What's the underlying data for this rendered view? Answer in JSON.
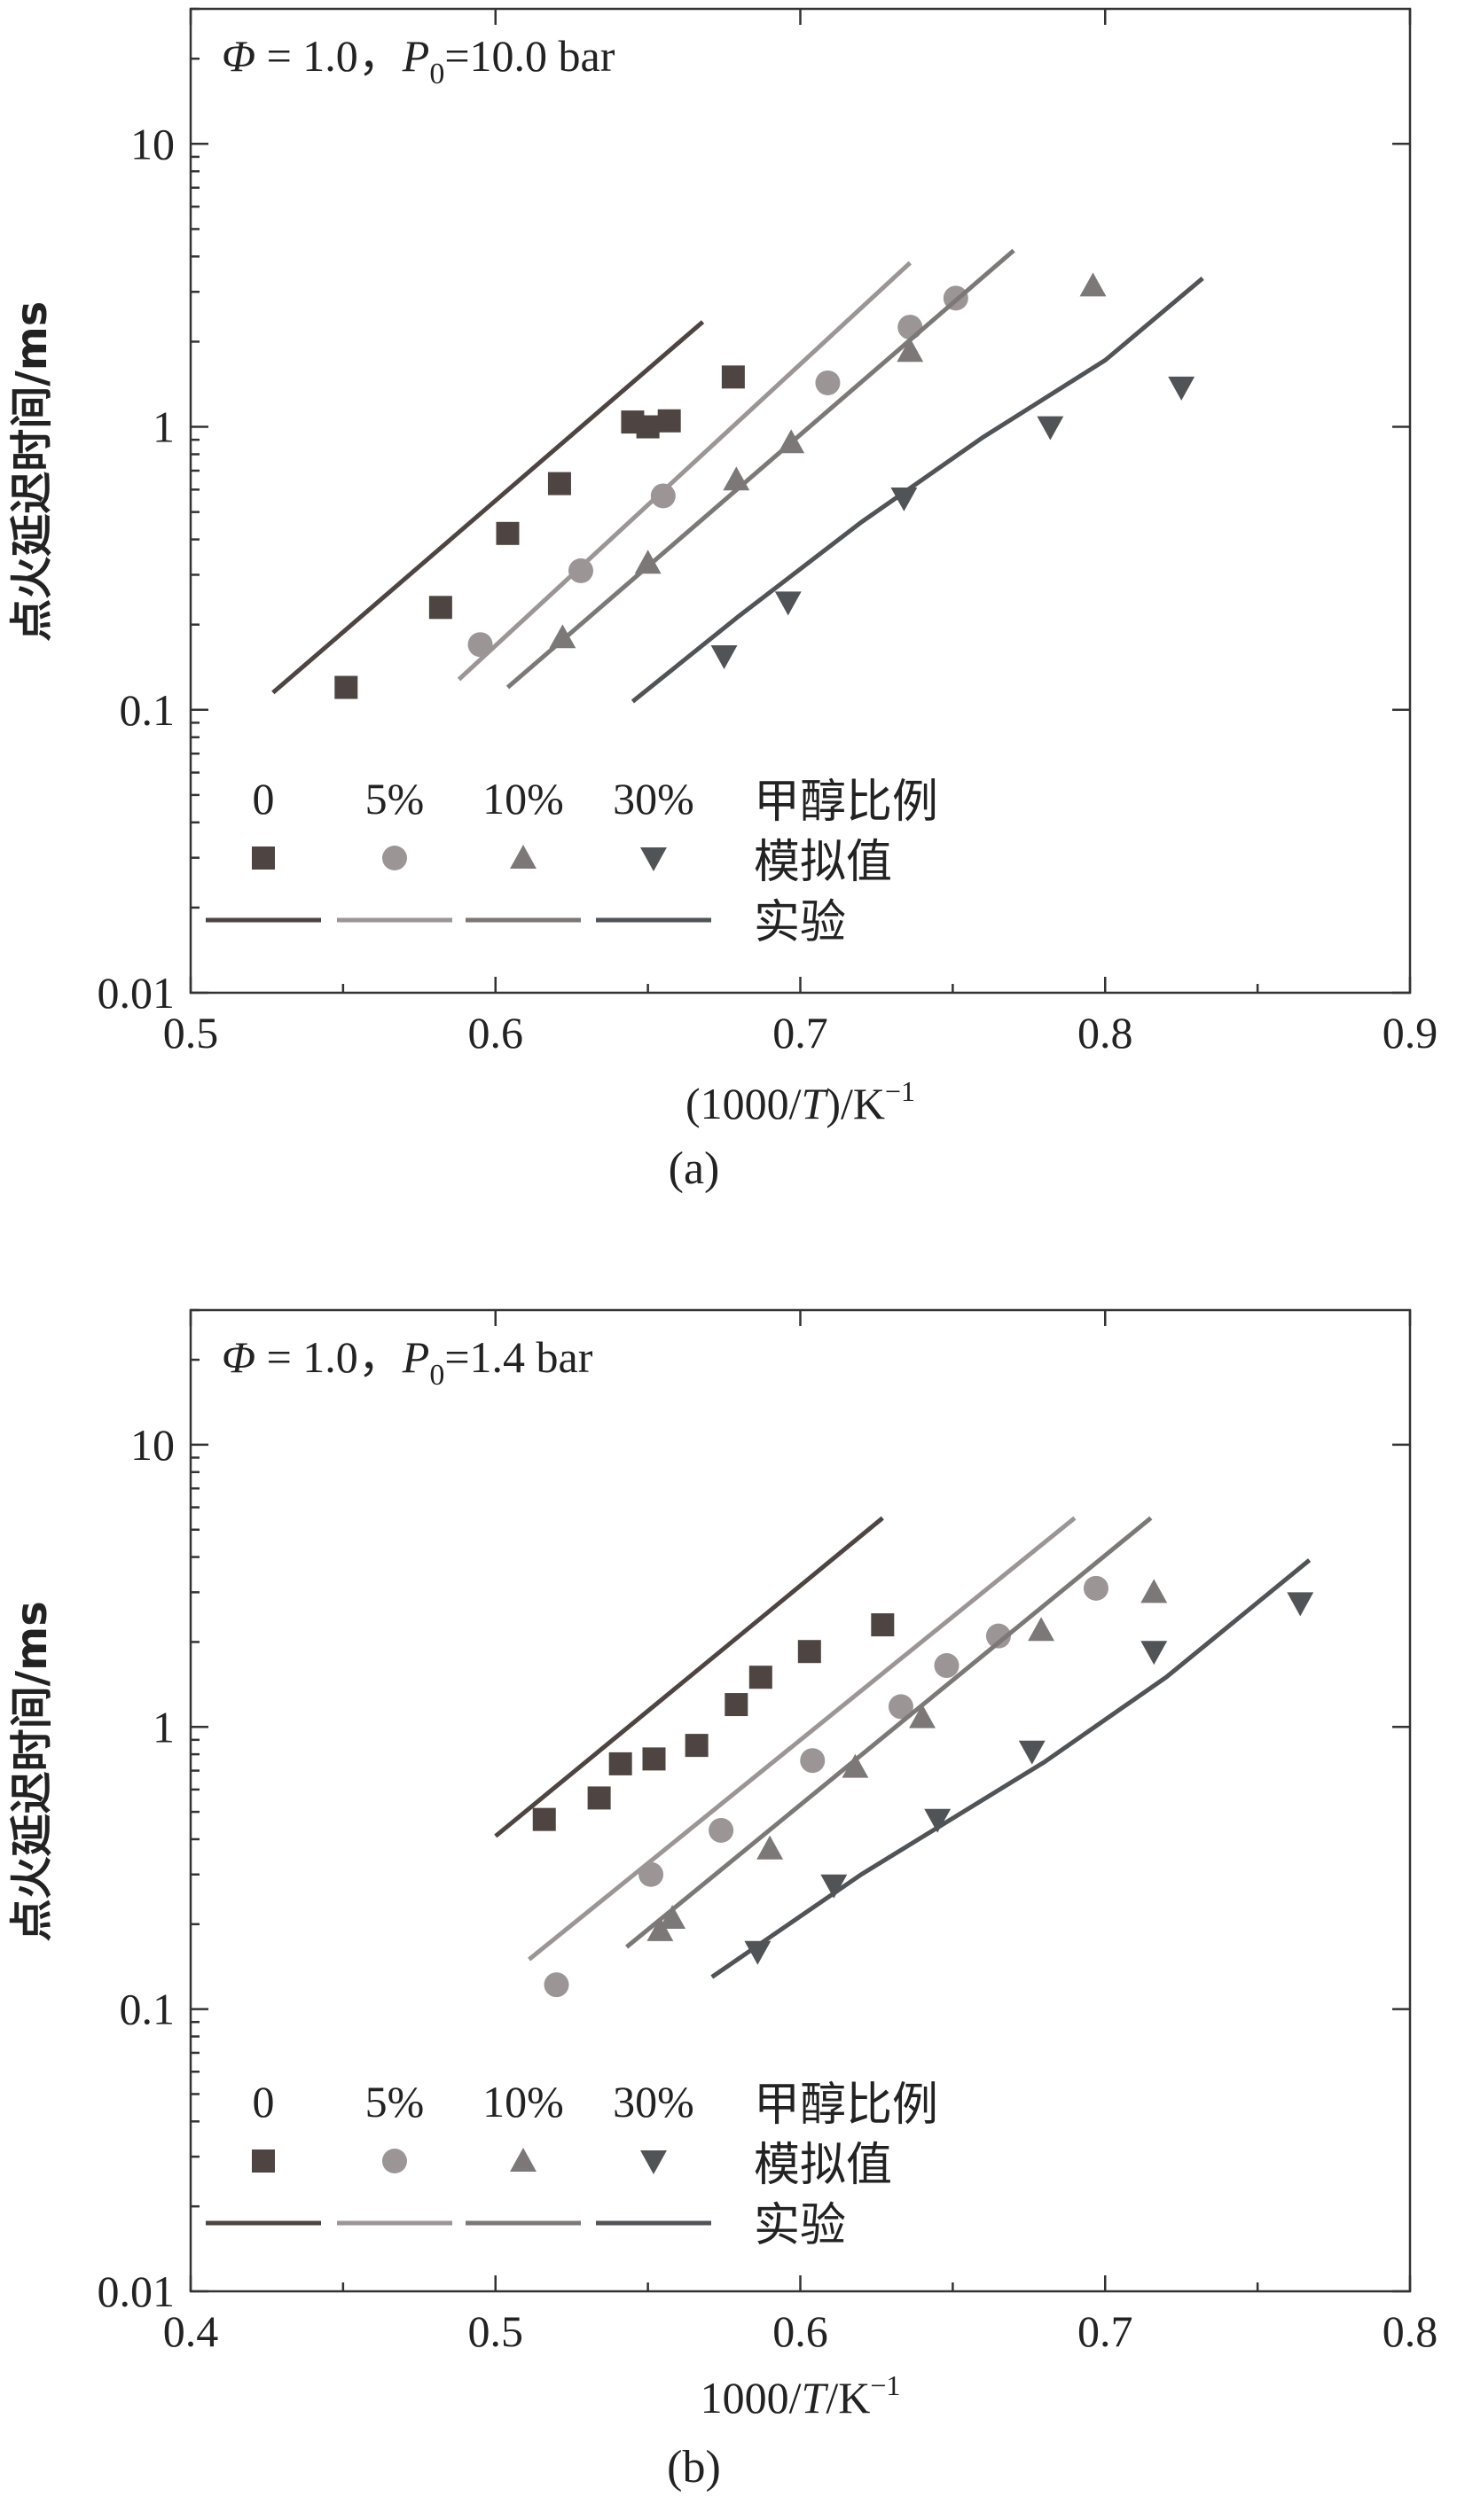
{
  "chart_data": [
    {
      "type": "scatter",
      "panel_label": "(a)",
      "annotation": {
        "phi": "Φ",
        "eq": " = 1.0，",
        "p": "P",
        "sub": "0",
        "rest": "=10.0 bar"
      },
      "xlabel": {
        "prefix": "(1000/",
        "italic": "T",
        "suffix": ")/K",
        "sup": "−1"
      },
      "ylabel": "点火延迟时间/ms",
      "xlim": [
        0.5,
        0.9
      ],
      "ylim": [
        0.01,
        30
      ],
      "yscale": "log",
      "xticks": [
        0.5,
        0.6,
        0.7,
        0.8,
        0.9
      ],
      "xtick_labels": [
        "0.5",
        "0.6",
        "0.7",
        "0.8",
        "0.9"
      ],
      "yticks": [
        0.01,
        0.1,
        1,
        10
      ],
      "ytick_labels": [
        "0.01",
        "0.1",
        "1",
        "10"
      ],
      "legend": {
        "title": "甲醇比例",
        "marker_label": "模拟值",
        "line_label": "实验",
        "entries": [
          "0",
          "5%",
          "10%",
          "30%"
        ]
      },
      "series": [
        {
          "name": "0",
          "marker": "square",
          "color": "#4e4542",
          "points": [
            [
              0.551,
              0.12
            ],
            [
              0.582,
              0.23
            ],
            [
              0.604,
              0.42
            ],
            [
              0.621,
              0.63
            ],
            [
              0.645,
              1.04
            ],
            [
              0.65,
              1.0
            ],
            [
              0.657,
              1.05
            ],
            [
              0.678,
              1.5
            ]
          ],
          "line": [
            [
              0.527,
              0.115
            ],
            [
              0.668,
              2.35
            ]
          ]
        },
        {
          "name": "5%",
          "marker": "circle",
          "color": "#9b9596",
          "points": [
            [
              0.595,
              0.17
            ],
            [
              0.628,
              0.31
            ],
            [
              0.655,
              0.57
            ],
            [
              0.709,
              1.43
            ],
            [
              0.736,
              2.25
            ],
            [
              0.751,
              2.85
            ]
          ],
          "line": [
            [
              0.588,
              0.128
            ],
            [
              0.736,
              3.8
            ]
          ]
        },
        {
          "name": "10%",
          "marker": "triangle-up",
          "color": "#7c7877",
          "points": [
            [
              0.622,
              0.18
            ],
            [
              0.65,
              0.33
            ],
            [
              0.679,
              0.65
            ],
            [
              0.697,
              0.88
            ],
            [
              0.736,
              1.85
            ],
            [
              0.796,
              3.15
            ]
          ],
          "line": [
            [
              0.604,
              0.12
            ],
            [
              0.77,
              4.2
            ]
          ]
        },
        {
          "name": "30%",
          "marker": "triangle-down",
          "color": "#505457",
          "points": [
            [
              0.675,
              0.155
            ],
            [
              0.696,
              0.24
            ],
            [
              0.734,
              0.56
            ],
            [
              0.782,
              1.0
            ],
            [
              0.825,
              1.38
            ]
          ],
          "line": [
            [
              0.645,
              0.107
            ],
            [
              0.68,
              0.215
            ],
            [
              0.72,
              0.46
            ],
            [
              0.76,
              0.92
            ],
            [
              0.8,
              1.72
            ],
            [
              0.832,
              3.35
            ]
          ]
        }
      ]
    },
    {
      "type": "scatter",
      "panel_label": "(b)",
      "annotation": {
        "phi": "Φ",
        "eq": " = 1.0，",
        "p": "P",
        "sub": "0",
        "rest": "=1.4 bar"
      },
      "xlabel": {
        "prefix": "1000/",
        "italic": "T",
        "suffix": "/K",
        "sup": "−1"
      },
      "ylabel": "点火延迟时间/ms",
      "xlim": [
        0.4,
        0.8
      ],
      "ylim": [
        0.01,
        30
      ],
      "yscale": "log",
      "xticks": [
        0.4,
        0.5,
        0.6,
        0.7,
        0.8
      ],
      "xtick_labels": [
        "0.4",
        "0.5",
        "0.6",
        "0.7",
        "0.8"
      ],
      "yticks": [
        0.01,
        0.1,
        1,
        10
      ],
      "ytick_labels": [
        "0.01",
        "0.1",
        "1",
        "10"
      ],
      "legend": {
        "title": "甲醇比例",
        "marker_label": "模拟值",
        "line_label": "实验",
        "entries": [
          "0",
          "5%",
          "10%",
          "30%"
        ]
      },
      "series": [
        {
          "name": "0",
          "marker": "square",
          "color": "#4e4542",
          "points": [
            [
              0.516,
              0.47
            ],
            [
              0.534,
              0.56
            ],
            [
              0.541,
              0.74
            ],
            [
              0.552,
              0.77
            ],
            [
              0.566,
              0.86
            ],
            [
              0.579,
              1.2
            ],
            [
              0.587,
              1.5
            ],
            [
              0.603,
              1.85
            ],
            [
              0.627,
              2.3
            ]
          ],
          "line": [
            [
              0.5,
              0.41
            ],
            [
              0.627,
              5.5
            ]
          ]
        },
        {
          "name": "5%",
          "marker": "circle",
          "color": "#9b9596",
          "points": [
            [
              0.52,
              0.122
            ],
            [
              0.551,
              0.3
            ],
            [
              0.574,
              0.43
            ],
            [
              0.604,
              0.76
            ],
            [
              0.633,
              1.18
            ],
            [
              0.648,
              1.65
            ],
            [
              0.665,
              2.1
            ],
            [
              0.697,
              3.1
            ]
          ],
          "line": [
            [
              0.511,
              0.15
            ],
            [
              0.69,
              5.5
            ]
          ]
        },
        {
          "name": "10%",
          "marker": "triangle-up",
          "color": "#7c7877",
          "points": [
            [
              0.554,
              0.19
            ],
            [
              0.558,
              0.21
            ],
            [
              0.59,
              0.37
            ],
            [
              0.618,
              0.72
            ],
            [
              0.64,
              1.08
            ],
            [
              0.679,
              2.2
            ],
            [
              0.716,
              3.0
            ]
          ],
          "line": [
            [
              0.543,
              0.166
            ],
            [
              0.715,
              5.5
            ]
          ]
        },
        {
          "name": "30%",
          "marker": "triangle-down",
          "color": "#505457",
          "points": [
            [
              0.586,
              0.16
            ],
            [
              0.611,
              0.275
            ],
            [
              0.645,
              0.47
            ],
            [
              0.676,
              0.82
            ],
            [
              0.716,
              1.85
            ],
            [
              0.764,
              2.75
            ]
          ],
          "line": [
            [
              0.571,
              0.13
            ],
            [
              0.62,
              0.3
            ],
            [
              0.68,
              0.75
            ],
            [
              0.72,
              1.5
            ],
            [
              0.767,
              3.9
            ]
          ]
        }
      ]
    }
  ]
}
